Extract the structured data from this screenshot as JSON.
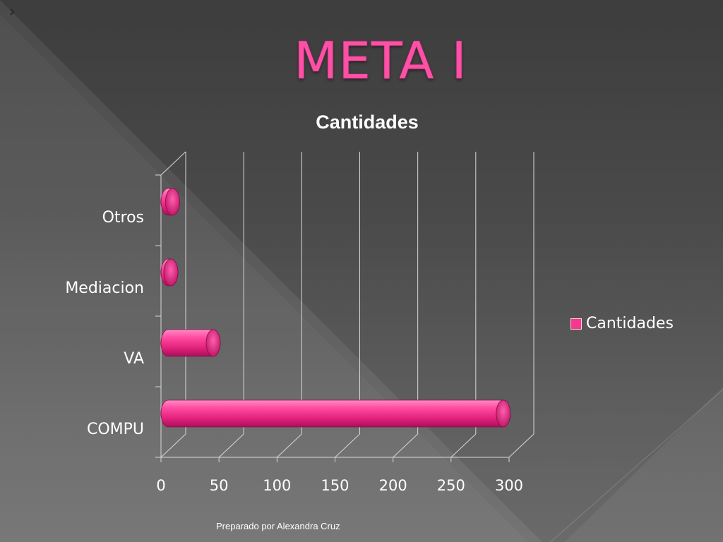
{
  "slide": {
    "title": "META I",
    "footer": "Preparado por Alexandra Cruz"
  },
  "colors": {
    "title": "#ff4fa6",
    "bar": "#f7388f",
    "grid": "#d8d8d8",
    "text": "#ffffff"
  },
  "chart_data": {
    "type": "bar",
    "orientation": "horizontal",
    "style": "3d-cylinder",
    "title": "Cantidades",
    "categories": [
      "COMPU",
      "VA",
      "Mediacion",
      "Otros"
    ],
    "series": [
      {
        "name": "Cantidades",
        "values": [
          295,
          45,
          5,
          10
        ]
      }
    ],
    "xlim": [
      0,
      300
    ],
    "xticks": [
      "0",
      "50",
      "100",
      "150",
      "200",
      "250",
      "300"
    ],
    "grid": true,
    "legend": {
      "position": "right",
      "entries": [
        "Cantidades"
      ]
    }
  }
}
